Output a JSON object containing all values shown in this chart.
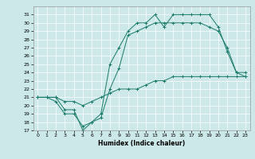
{
  "xlabel": "Humidex (Indice chaleur)",
  "ylabel": "",
  "background_color": "#cce8e8",
  "line_color": "#1a7a6a",
  "xlim": [
    -0.5,
    23.5
  ],
  "ylim": [
    17,
    32
  ],
  "yticks": [
    17,
    18,
    19,
    20,
    21,
    22,
    23,
    24,
    25,
    26,
    27,
    28,
    29,
    30,
    31
  ],
  "xticks": [
    0,
    1,
    2,
    3,
    4,
    5,
    6,
    7,
    8,
    9,
    10,
    11,
    12,
    13,
    14,
    15,
    16,
    17,
    18,
    19,
    20,
    21,
    22,
    23
  ],
  "line1_x": [
    0,
    1,
    2,
    3,
    4,
    5,
    6,
    7,
    8,
    9,
    10,
    11,
    12,
    13,
    14,
    15,
    16,
    17,
    18,
    19,
    20,
    21,
    22,
    23
  ],
  "line1_y": [
    21,
    21,
    21,
    19.5,
    19.5,
    17,
    18,
    19,
    25,
    27,
    29,
    30,
    30,
    31,
    29.5,
    31,
    31,
    31,
    31,
    31,
    29.5,
    26.5,
    24,
    23.5
  ],
  "line2_x": [
    0,
    1,
    2,
    3,
    4,
    5,
    6,
    7,
    8,
    9,
    10,
    11,
    12,
    13,
    14,
    15,
    16,
    17,
    18,
    19,
    20,
    21,
    22,
    23
  ],
  "line2_y": [
    21,
    21,
    20.5,
    19,
    19,
    17.5,
    18,
    18.5,
    22,
    24.5,
    28.5,
    29,
    29.5,
    30,
    30,
    30,
    30,
    30,
    30,
    29.5,
    29,
    27,
    24,
    24
  ],
  "line3_x": [
    0,
    1,
    2,
    3,
    4,
    5,
    6,
    7,
    8,
    9,
    10,
    11,
    12,
    13,
    14,
    15,
    16,
    17,
    18,
    19,
    20,
    21,
    22,
    23
  ],
  "line3_y": [
    21,
    21,
    21,
    20.5,
    20.5,
    20,
    20.5,
    21,
    21.5,
    22,
    22,
    22,
    22.5,
    23,
    23,
    23.5,
    23.5,
    23.5,
    23.5,
    23.5,
    23.5,
    23.5,
    23.5,
    23.5
  ]
}
